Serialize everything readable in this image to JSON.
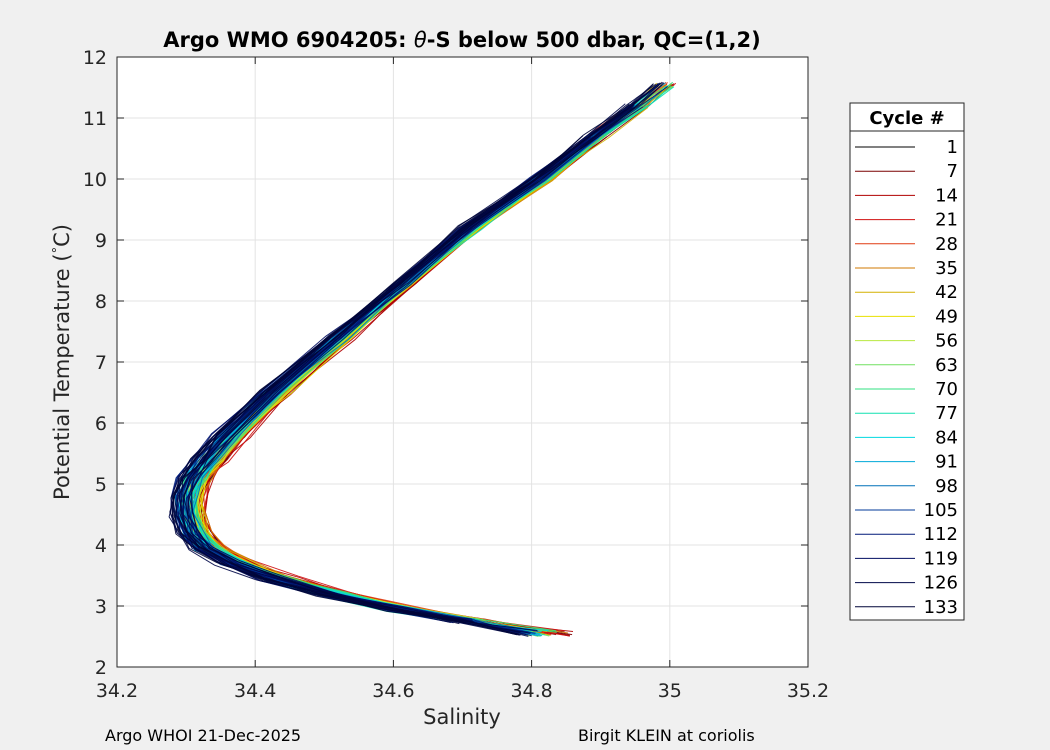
{
  "chart_data": {
    "type": "line",
    "title_prefix": "Argo WMO 6904205: ",
    "title_symbol": "θ",
    "title_suffix": "-S below 500 dbar,  QC=(1,2)",
    "xlabel": "Salinity",
    "ylabel_prefix": "Potential Temperature (",
    "ylabel_degree": "°",
    "ylabel_suffix": "C)",
    "xlim": [
      34.2,
      35.2
    ],
    "ylim": [
      2,
      12
    ],
    "xticks": [
      "34.2",
      "34.4",
      "34.6",
      "34.8",
      "35",
      "35.2"
    ],
    "yticks": [
      "2",
      "3",
      "4",
      "5",
      "6",
      "7",
      "8",
      "9",
      "10",
      "11",
      "12"
    ],
    "grid": true,
    "legend_position": "right-outside",
    "legend_title": "Cycle #",
    "legend_entries": [
      {
        "label": "1",
        "color": "#000000"
      },
      {
        "label": "7",
        "color": "#7a0000"
      },
      {
        "label": "14",
        "color": "#b00000"
      },
      {
        "label": "21",
        "color": "#d01010"
      },
      {
        "label": "28",
        "color": "#e03a10"
      },
      {
        "label": "35",
        "color": "#d27a00"
      },
      {
        "label": "42",
        "color": "#d4b000"
      },
      {
        "label": "49",
        "color": "#e8e000"
      },
      {
        "label": "56",
        "color": "#b8e840"
      },
      {
        "label": "63",
        "color": "#70e060"
      },
      {
        "label": "70",
        "color": "#30e080"
      },
      {
        "label": "77",
        "color": "#10e0b0"
      },
      {
        "label": "84",
        "color": "#00d8e0"
      },
      {
        "label": "91",
        "color": "#00a8d8"
      },
      {
        "label": "98",
        "color": "#0070b8"
      },
      {
        "label": "105",
        "color": "#003898"
      },
      {
        "label": "112",
        "color": "#001878"
      },
      {
        "label": "119",
        "color": "#000c60"
      },
      {
        "label": "126",
        "color": "#000848"
      },
      {
        "label": "133",
        "color": "#000538"
      }
    ],
    "mean_profile": {
      "salinity": [
        34.79,
        34.7,
        34.6,
        34.5,
        34.42,
        34.36,
        34.32,
        34.3,
        34.29,
        34.29,
        34.3,
        34.32,
        34.35,
        34.42,
        34.52,
        34.62,
        34.72,
        34.82,
        34.9,
        34.96,
        35.0
      ],
      "theta": [
        2.55,
        2.75,
        2.95,
        3.2,
        3.45,
        3.7,
        3.95,
        4.2,
        4.5,
        4.8,
        5.1,
        5.4,
        5.8,
        6.5,
        7.4,
        8.3,
        9.2,
        10.0,
        10.7,
        11.2,
        11.55
      ]
    }
  },
  "footer": {
    "left": "Argo WHOI 21-Dec-2025",
    "right": "Birgit KLEIN at coriolis"
  }
}
